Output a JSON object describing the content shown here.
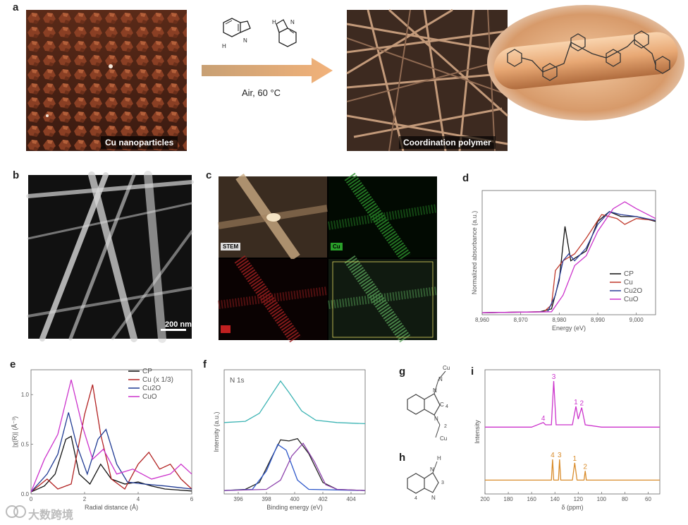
{
  "panels": {
    "a": {
      "label": "a",
      "left_caption": "Cu nanoparticles",
      "right_caption": "Coordination polymer",
      "arrow_label": "Air, 60 °C",
      "colors": {
        "particle": "#8a3f24",
        "arrow_start": "#d8b07a",
        "arrow_end": "#f0a86a",
        "rod": "#b98a6a"
      }
    },
    "b": {
      "label": "b",
      "scale_bar": "200 nm"
    },
    "c": {
      "label": "c",
      "tiles": [
        {
          "tag": "STEM"
        },
        {
          "tag": "Cu"
        },
        {
          "tag": "N"
        },
        {
          "tag": ""
        }
      ]
    },
    "d": {
      "label": "d",
      "chart_data": {
        "type": "line",
        "xlabel": "Energy (eV)",
        "ylabel": "Normalized absorbance (a.u.)",
        "xlim": [
          8960,
          9005
        ],
        "xticks": [
          "8,960",
          "8,970",
          "8,980",
          "8,990",
          "9,000"
        ],
        "legend_position": "bottom-right",
        "series": [
          {
            "name": "CP",
            "color": "#111111",
            "points": [
              [
                8960,
                0.02
              ],
              [
                8975,
                0.03
              ],
              [
                8978,
                0.06
              ],
              [
                8980,
                0.35
              ],
              [
                8981.5,
                0.9
              ],
              [
                8983,
                0.55
              ],
              [
                8985,
                0.6
              ],
              [
                8987,
                0.65
              ],
              [
                8990,
                0.95
              ],
              [
                8993,
                1.05
              ],
              [
                8996,
                1.0
              ],
              [
                9000,
                1.0
              ],
              [
                9005,
                0.95
              ]
            ]
          },
          {
            "name": "Cu",
            "color": "#c0392b",
            "points": [
              [
                8960,
                0.02
              ],
              [
                8976,
                0.03
              ],
              [
                8978,
                0.1
              ],
              [
                8979,
                0.45
              ],
              [
                8981,
                0.55
              ],
              [
                8984,
                0.62
              ],
              [
                8987,
                0.78
              ],
              [
                8991,
                1.02
              ],
              [
                8995,
                0.98
              ],
              [
                8997,
                0.92
              ],
              [
                9000,
                0.98
              ],
              [
                9005,
                0.96
              ]
            ]
          },
          {
            "name": "Cu2O",
            "color": "#2c3e99",
            "points": [
              [
                8960,
                0.02
              ],
              [
                8977,
                0.03
              ],
              [
                8979,
                0.2
              ],
              [
                8981,
                0.55
              ],
              [
                8982.5,
                0.62
              ],
              [
                8984,
                0.55
              ],
              [
                8987,
                0.68
              ],
              [
                8990,
                0.92
              ],
              [
                8993,
                1.05
              ],
              [
                8996,
                1.02
              ],
              [
                9000,
                1.0
              ],
              [
                9005,
                0.96
              ]
            ]
          },
          {
            "name": "CuO",
            "color": "#cc33cc",
            "points": [
              [
                8960,
                0.02
              ],
              [
                8978,
                0.03
              ],
              [
                8981,
                0.2
              ],
              [
                8984,
                0.5
              ],
              [
                8987,
                0.6
              ],
              [
                8990,
                0.85
              ],
              [
                8994,
                1.08
              ],
              [
                8997,
                1.15
              ],
              [
                9000,
                1.08
              ],
              [
                9005,
                0.98
              ]
            ]
          }
        ]
      }
    },
    "e": {
      "label": "e",
      "chart_data": {
        "type": "line",
        "xlabel": "Radial distance (Å)",
        "ylabel": "|χ(R)| (Å⁻³)",
        "xlim": [
          0,
          6
        ],
        "ylim": [
          0,
          1.25
        ],
        "xticks": [
          "0",
          "2",
          "4",
          "6"
        ],
        "yticks": [
          "0.0",
          "0.5",
          "1.0"
        ],
        "legend_position": "top-right",
        "series": [
          {
            "name": "CP",
            "color": "#111111",
            "points": [
              [
                0,
                0.02
              ],
              [
                0.5,
                0.08
              ],
              [
                0.9,
                0.2
              ],
              [
                1.3,
                0.55
              ],
              [
                1.5,
                0.58
              ],
              [
                1.8,
                0.2
              ],
              [
                2.2,
                0.1
              ],
              [
                2.6,
                0.3
              ],
              [
                3.0,
                0.15
              ],
              [
                3.5,
                0.1
              ],
              [
                4.0,
                0.12
              ],
              [
                4.5,
                0.08
              ],
              [
                5.0,
                0.05
              ],
              [
                5.5,
                0.04
              ],
              [
                6,
                0.03
              ]
            ]
          },
          {
            "name": "Cu (x 1/3)",
            "color": "#b22222",
            "points": [
              [
                0,
                0.02
              ],
              [
                0.6,
                0.15
              ],
              [
                1.0,
                0.05
              ],
              [
                1.5,
                0.1
              ],
              [
                2.0,
                0.8
              ],
              [
                2.3,
                1.1
              ],
              [
                2.6,
                0.6
              ],
              [
                3.0,
                0.15
              ],
              [
                3.5,
                0.05
              ],
              [
                4.0,
                0.3
              ],
              [
                4.4,
                0.42
              ],
              [
                4.8,
                0.25
              ],
              [
                5.2,
                0.3
              ],
              [
                5.6,
                0.15
              ],
              [
                6,
                0.05
              ]
            ]
          },
          {
            "name": "Cu2O",
            "color": "#1f3a93",
            "points": [
              [
                0,
                0.02
              ],
              [
                0.6,
                0.2
              ],
              [
                1.0,
                0.4
              ],
              [
                1.4,
                0.82
              ],
              [
                1.7,
                0.5
              ],
              [
                2.1,
                0.2
              ],
              [
                2.5,
                0.55
              ],
              [
                2.8,
                0.65
              ],
              [
                3.2,
                0.3
              ],
              [
                3.6,
                0.12
              ],
              [
                4.2,
                0.1
              ],
              [
                5.0,
                0.08
              ],
              [
                6,
                0.05
              ]
            ]
          },
          {
            "name": "CuO",
            "color": "#cc33cc",
            "points": [
              [
                0,
                0.02
              ],
              [
                0.5,
                0.35
              ],
              [
                1.0,
                0.6
              ],
              [
                1.5,
                1.15
              ],
              [
                1.9,
                0.7
              ],
              [
                2.3,
                0.35
              ],
              [
                2.7,
                0.45
              ],
              [
                3.2,
                0.2
              ],
              [
                3.8,
                0.25
              ],
              [
                4.5,
                0.15
              ],
              [
                5.2,
                0.2
              ],
              [
                5.6,
                0.3
              ],
              [
                6,
                0.2
              ]
            ]
          }
        ]
      }
    },
    "f": {
      "label": "f",
      "spectrum_label": "N 1s",
      "chart_data": {
        "type": "line",
        "xlabel": "Binding energy (eV)",
        "ylabel": "Intensity (a.u.)",
        "xlim": [
          395,
          405
        ],
        "xticks": [
          "396",
          "398",
          "400",
          "402",
          "404"
        ],
        "series": [
          {
            "color": "#3bb3b3",
            "points": [
              [
                395,
                0.62
              ],
              [
                396.5,
                0.63
              ],
              [
                397.5,
                0.7
              ],
              [
                398.3,
                0.85
              ],
              [
                399,
                0.98
              ],
              [
                399.6,
                0.88
              ],
              [
                400.5,
                0.72
              ],
              [
                401.5,
                0.64
              ],
              [
                403,
                0.62
              ],
              [
                405,
                0.61
              ]
            ]
          },
          {
            "color": "#222222",
            "points": [
              [
                395,
                0.03
              ],
              [
                396.5,
                0.04
              ],
              [
                397.5,
                0.1
              ],
              [
                398.3,
                0.3
              ],
              [
                399,
                0.47
              ],
              [
                399.6,
                0.46
              ],
              [
                400.2,
                0.48
              ],
              [
                401,
                0.35
              ],
              [
                402,
                0.1
              ],
              [
                403,
                0.04
              ],
              [
                405,
                0.03
              ]
            ]
          },
          {
            "color": "#2c56c9",
            "points": [
              [
                395,
                0.03
              ],
              [
                397,
                0.04
              ],
              [
                398,
                0.2
              ],
              [
                398.8,
                0.43
              ],
              [
                399.4,
                0.38
              ],
              [
                400.2,
                0.12
              ],
              [
                401,
                0.04
              ],
              [
                405,
                0.03
              ]
            ]
          },
          {
            "color": "#8e44ad",
            "points": [
              [
                395,
                0.03
              ],
              [
                398,
                0.04
              ],
              [
                399,
                0.12
              ],
              [
                399.8,
                0.33
              ],
              [
                400.6,
                0.44
              ],
              [
                401.4,
                0.28
              ],
              [
                402.2,
                0.08
              ],
              [
                403,
                0.04
              ],
              [
                405,
                0.03
              ]
            ]
          }
        ]
      }
    },
    "g": {
      "label": "g",
      "atom_labels": [
        "N",
        "Cu",
        "N",
        "C",
        "4",
        "N",
        "Cu",
        "2"
      ]
    },
    "h": {
      "label": "h",
      "atom_labels": [
        "H",
        "N",
        "3",
        "N",
        "4"
      ]
    },
    "i": {
      "label": "i",
      "chart_data": {
        "type": "line",
        "xlabel": "δ (ppm)",
        "ylabel": "Intensity",
        "xlim": [
          200,
          50
        ],
        "xticks": [
          "200",
          "180",
          "160",
          "140",
          "120",
          "100",
          "80",
          "60"
        ],
        "series": [
          {
            "color": "#cc33cc",
            "peak_labels": [
              "4",
              "3",
              "1",
              "2"
            ],
            "points": [
              [
                200,
                0.58
              ],
              [
                160,
                0.58
              ],
              [
                150,
                0.62
              ],
              [
                148,
                0.6
              ],
              [
                143,
                0.6
              ],
              [
                141,
                0.98
              ],
              [
                139,
                0.6
              ],
              [
                125,
                0.6
              ],
              [
                122,
                0.76
              ],
              [
                120,
                0.65
              ],
              [
                117,
                0.75
              ],
              [
                114,
                0.6
              ],
              [
                100,
                0.58
              ],
              [
                50,
                0.58
              ]
            ]
          },
          {
            "color": "#d98c2b",
            "peak_labels": [
              "4",
              "3",
              "1",
              "2"
            ],
            "points": [
              [
                200,
                0.12
              ],
              [
                150,
                0.12
              ],
              [
                143,
                0.12
              ],
              [
                142,
                0.3
              ],
              [
                141,
                0.12
              ],
              [
                137,
                0.12
              ],
              [
                136,
                0.3
              ],
              [
                135,
                0.12
              ],
              [
                125,
                0.12
              ],
              [
                123,
                0.27
              ],
              [
                121,
                0.12
              ],
              [
                115,
                0.12
              ],
              [
                114,
                0.2
              ],
              [
                113,
                0.12
              ],
              [
                100,
                0.12
              ],
              [
                50,
                0.12
              ]
            ]
          }
        ]
      }
    }
  },
  "watermark": "大数跨境"
}
